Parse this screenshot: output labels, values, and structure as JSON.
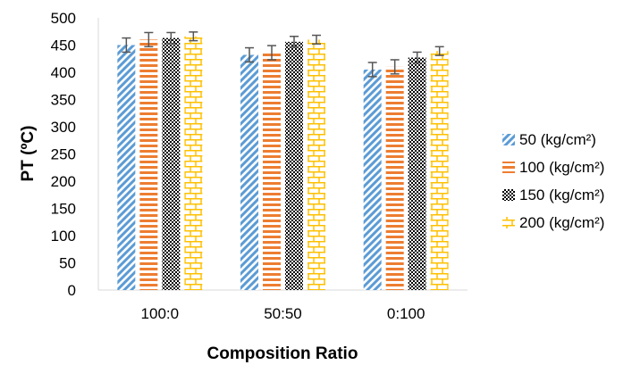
{
  "chart_data": {
    "type": "bar",
    "title": "",
    "xlabel": "Composition Ratio",
    "ylabel": "PT (ºC)",
    "ylim": [
      0,
      500
    ],
    "yticks": [
      0,
      50,
      100,
      150,
      200,
      250,
      300,
      350,
      400,
      450,
      500
    ],
    "categories": [
      "100:0",
      "50:50",
      "0:100"
    ],
    "grid": false,
    "legend_position": "right",
    "series": [
      {
        "name": "50 (kg/cm²)",
        "values": [
          450,
          432,
          405
        ],
        "errors": [
          13,
          13,
          13
        ],
        "color": "#5b9bd5",
        "pattern": "diagonal-stripes"
      },
      {
        "name": "100 (kg/cm²)",
        "values": [
          460,
          436,
          410
        ],
        "errors": [
          13,
          13,
          13
        ],
        "color": "#ed7d31",
        "pattern": "horizontal-stripes"
      },
      {
        "name": "150 (kg/cm²)",
        "values": [
          463,
          456,
          427
        ],
        "errors": [
          10,
          10,
          10
        ],
        "color": "#000000",
        "pattern": "checker"
      },
      {
        "name": "200 (kg/cm²)",
        "values": [
          466,
          460,
          439
        ],
        "errors": [
          8,
          8,
          8
        ],
        "color": "#ffc000",
        "pattern": "bricks"
      }
    ]
  }
}
